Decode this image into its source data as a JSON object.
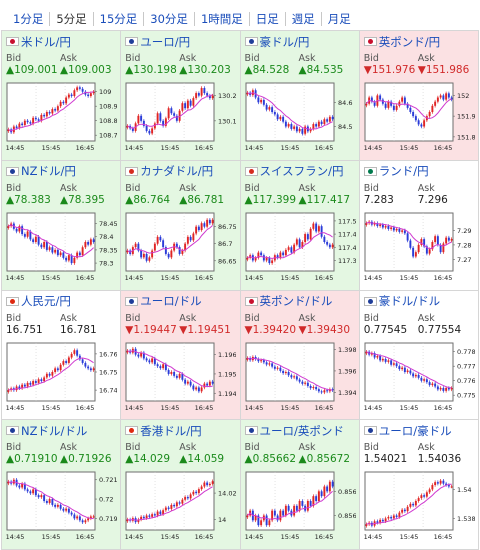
{
  "tabs": [
    "1分足",
    "5分足",
    "15分足",
    "30分足",
    "1時間足",
    "日足",
    "週足",
    "月足"
  ],
  "active_tab": 1,
  "colors": {
    "up": "#1b8a1b",
    "down": "#d12a2a",
    "link": "#1a4dba",
    "ma": "#d03bd0",
    "candle_up": "#e02424",
    "candle_down": "#2a3bd8"
  },
  "bid_label": "Bid",
  "ask_label": "Ask",
  "pairs": [
    {
      "name": "米ドル/円",
      "flag": "us-flag",
      "dir": "up",
      "bid": "▲109.001",
      "ask": "▲109.003",
      "chart_data": {
        "type": "candlestick",
        "x_ticks": [
          "14:45",
          "15:45",
          "16:45"
        ],
        "y_ticks": [
          "109",
          "108.9",
          "108.8",
          "108.7"
        ],
        "ylim": [
          108.66,
          109.06
        ],
        "close": [
          108.74,
          108.72,
          108.76,
          108.75,
          108.78,
          108.77,
          108.8,
          108.79,
          108.78,
          108.82,
          108.81,
          108.8,
          108.84,
          108.83,
          108.86,
          108.85,
          108.88,
          108.87,
          108.9,
          108.93,
          108.92,
          108.96,
          108.98,
          108.97,
          109.01,
          109.03,
          109.02,
          109.0,
          108.98,
          108.97,
          108.99,
          109.0
        ]
      }
    },
    {
      "name": "ユーロ/円",
      "flag": "eu-flag",
      "dir": "up",
      "bid": "▲130.198",
      "ask": "▲130.203",
      "chart_data": {
        "type": "candlestick",
        "x_ticks": [
          "14:45",
          "15:45",
          "16:45"
        ],
        "y_ticks": [
          "130.2",
          "130.1"
        ],
        "ylim": [
          130.02,
          130.25
        ],
        "close": [
          130.08,
          130.07,
          130.06,
          130.09,
          130.12,
          130.1,
          130.08,
          130.06,
          130.05,
          130.07,
          130.09,
          130.13,
          130.1,
          130.08,
          130.11,
          130.15,
          130.13,
          130.12,
          130.1,
          130.14,
          130.17,
          130.15,
          130.18,
          130.16,
          130.19,
          130.21,
          130.2,
          130.23,
          130.21,
          130.2,
          130.19,
          130.2
        ]
      }
    },
    {
      "name": "豪ドル/円",
      "flag": "au-flag",
      "dir": "up",
      "bid": "▲84.528",
      "ask": "▲84.535",
      "chart_data": {
        "type": "candlestick",
        "x_ticks": [
          "14:45",
          "15:45",
          "16:45"
        ],
        "y_ticks": [
          "84.6",
          "84.5"
        ],
        "ylim": [
          84.44,
          84.68
        ],
        "close": [
          84.64,
          84.63,
          84.65,
          84.62,
          84.6,
          84.61,
          84.59,
          84.57,
          84.58,
          84.56,
          84.55,
          84.53,
          84.54,
          84.52,
          84.5,
          84.51,
          84.49,
          84.5,
          84.48,
          84.49,
          84.47,
          84.5,
          84.48,
          84.49,
          84.51,
          84.5,
          84.52,
          84.51,
          84.53,
          84.52,
          84.54,
          84.53
        ]
      }
    },
    {
      "name": "英ポンド/円",
      "flag": "uk-flag",
      "dir": "down",
      "bid": "▼151.976",
      "ask": "▼151.986",
      "chart_data": {
        "type": "candlestick",
        "x_ticks": [
          "14:45",
          "15:45",
          "16:45"
        ],
        "y_ticks": [
          "152",
          "151.9",
          "151.8"
        ],
        "ylim": [
          151.78,
          152.06
        ],
        "close": [
          151.96,
          151.99,
          151.97,
          151.95,
          152.0,
          151.98,
          151.96,
          151.94,
          151.97,
          151.95,
          151.93,
          151.95,
          151.97,
          151.99,
          151.96,
          151.94,
          151.92,
          151.9,
          151.88,
          151.86,
          151.85,
          151.88,
          151.9,
          151.92,
          151.95,
          151.97,
          151.99,
          152.0,
          151.98,
          152.01,
          151.99,
          151.98
        ]
      }
    },
    {
      "name": "NZドル/円",
      "flag": "nz-flag",
      "dir": "up",
      "bid": "▲78.383",
      "ask": "▲78.395",
      "chart_data": {
        "type": "candlestick",
        "x_ticks": [
          "14:45",
          "15:45",
          "16:45"
        ],
        "y_ticks": [
          "78.45",
          "78.4",
          "78.35",
          "78.3"
        ],
        "ylim": [
          78.27,
          78.49
        ],
        "close": [
          78.44,
          78.45,
          78.43,
          78.42,
          78.44,
          78.41,
          78.4,
          78.42,
          78.39,
          78.38,
          78.4,
          78.37,
          78.36,
          78.38,
          78.35,
          78.36,
          78.34,
          78.35,
          78.33,
          78.34,
          78.32,
          78.31,
          78.33,
          78.3,
          78.32,
          78.34,
          78.33,
          78.36,
          78.38,
          78.37,
          78.39,
          78.38
        ]
      }
    },
    {
      "name": "カナダドル/円",
      "flag": "ca-flag",
      "dir": "up",
      "bid": "▲86.764",
      "ask": "▲86.781",
      "chart_data": {
        "type": "candlestick",
        "x_ticks": [
          "14:45",
          "15:45",
          "16:45"
        ],
        "y_ticks": [
          "86.75",
          "86.7",
          "86.65"
        ],
        "ylim": [
          86.62,
          86.79
        ],
        "close": [
          86.68,
          86.67,
          86.69,
          86.7,
          86.68,
          86.66,
          86.67,
          86.65,
          86.66,
          86.68,
          86.7,
          86.72,
          86.71,
          86.69,
          86.67,
          86.66,
          86.68,
          86.7,
          86.69,
          86.67,
          86.68,
          86.7,
          86.72,
          86.71,
          86.73,
          86.75,
          86.74,
          86.76,
          86.75,
          86.77,
          86.76,
          86.77
        ]
      }
    },
    {
      "name": "スイスフラン/円",
      "flag": "ch-flag",
      "dir": "up",
      "bid": "▲117.399",
      "ask": "▲117.417",
      "chart_data": {
        "type": "candlestick",
        "x_ticks": [
          "14:45",
          "15:45",
          "16:45"
        ],
        "y_ticks": [
          "117.5",
          "117.45",
          "117.4",
          "117.35"
        ],
        "ylim": [
          117.31,
          117.53
        ],
        "close": [
          117.36,
          117.37,
          117.35,
          117.36,
          117.38,
          117.37,
          117.35,
          117.36,
          117.34,
          117.35,
          117.37,
          117.36,
          117.38,
          117.37,
          117.39,
          117.4,
          117.38,
          117.41,
          117.43,
          117.4,
          117.42,
          117.45,
          117.43,
          117.47,
          117.49,
          117.46,
          117.48,
          117.44,
          117.42,
          117.41,
          117.4,
          117.41
        ]
      }
    },
    {
      "name": "ランド/円",
      "flag": "za-flag",
      "dir": "flat",
      "bid": "7.283",
      "ask": "7.296",
      "chart_data": {
        "type": "candlestick",
        "x_ticks": [
          "14:45",
          "15:45",
          "16:45"
        ],
        "y_ticks": [
          "7.29",
          "7.28",
          "7.27"
        ],
        "ylim": [
          7.262,
          7.302
        ],
        "close": [
          7.295,
          7.296,
          7.294,
          7.295,
          7.293,
          7.294,
          7.292,
          7.293,
          7.291,
          7.292,
          7.29,
          7.291,
          7.289,
          7.29,
          7.288,
          7.283,
          7.278,
          7.272,
          7.275,
          7.28,
          7.284,
          7.279,
          7.274,
          7.277,
          7.282,
          7.286,
          7.28,
          7.275,
          7.281,
          7.285,
          7.283,
          7.284
        ]
      }
    },
    {
      "name": "人民元/円",
      "flag": "cn-flag",
      "dir": "flat",
      "bid": "16.751",
      "ask": "16.781",
      "chart_data": {
        "type": "candlestick",
        "x_ticks": [
          "14:45",
          "15:45",
          "16:45"
        ],
        "y_ticks": [
          "16.76",
          "16.75",
          "16.74"
        ],
        "ylim": [
          16.734,
          16.766
        ],
        "close": [
          16.74,
          16.741,
          16.74,
          16.742,
          16.741,
          16.743,
          16.742,
          16.744,
          16.743,
          16.745,
          16.744,
          16.746,
          16.745,
          16.747,
          16.749,
          16.748,
          16.75,
          16.752,
          16.751,
          16.754,
          16.756,
          16.755,
          16.758,
          16.76,
          16.762,
          16.759,
          16.757,
          16.755,
          16.753,
          16.752,
          16.751,
          16.752
        ]
      }
    },
    {
      "name": "ユーロ/ドル",
      "flag": "eu-flag",
      "dir": "down",
      "bid": "▼1.19447",
      "ask": "▼1.19451",
      "chart_data": {
        "type": "candlestick",
        "x_ticks": [
          "14:45",
          "15:45",
          "16:45"
        ],
        "y_ticks": [
          "1.196",
          "1.195",
          "1.194"
        ],
        "ylim": [
          1.1936,
          1.1966
        ],
        "close": [
          1.1962,
          1.1961,
          1.1963,
          1.196,
          1.1959,
          1.1961,
          1.1958,
          1.1957,
          1.1956,
          1.1958,
          1.1955,
          1.1954,
          1.1953,
          1.1955,
          1.1952,
          1.195,
          1.1951,
          1.1949,
          1.1948,
          1.195,
          1.1947,
          1.1945,
          1.1946,
          1.1944,
          1.1942,
          1.1943,
          1.1941,
          1.1943,
          1.1945,
          1.1944,
          1.1946,
          1.1945
        ]
      }
    },
    {
      "name": "英ポンド/ドル",
      "flag": "uk-flag",
      "dir": "down",
      "bid": "▼1.39420",
      "ask": "▼1.39430",
      "chart_data": {
        "type": "candlestick",
        "x_ticks": [
          "14:45",
          "15:45",
          "16:45"
        ],
        "y_ticks": [
          "1.398",
          "1.396",
          "1.394"
        ],
        "ylim": [
          1.3932,
          1.3986
        ],
        "close": [
          1.3972,
          1.397,
          1.3973,
          1.3971,
          1.3969,
          1.397,
          1.3968,
          1.3966,
          1.3967,
          1.3964,
          1.3962,
          1.3963,
          1.396,
          1.3958,
          1.3959,
          1.3956,
          1.3954,
          1.3955,
          1.3952,
          1.395,
          1.3948,
          1.3949,
          1.3946,
          1.3944,
          1.3945,
          1.3943,
          1.3941,
          1.394,
          1.3942,
          1.3941,
          1.3943,
          1.3942
        ]
      }
    },
    {
      "name": "豪ドル/ドル",
      "flag": "au-flag",
      "dir": "flat",
      "bid": "0.77545",
      "ask": "0.77554",
      "chart_data": {
        "type": "candlestick",
        "x_ticks": [
          "14:45",
          "15:45",
          "16:45"
        ],
        "y_ticks": [
          "0.778",
          "0.777",
          "0.776",
          "0.775"
        ],
        "ylim": [
          0.7746,
          0.7786
        ],
        "close": [
          0.778,
          0.7778,
          0.7779,
          0.7776,
          0.7777,
          0.7774,
          0.7775,
          0.7773,
          0.7774,
          0.7771,
          0.7772,
          0.777,
          0.7768,
          0.7769,
          0.7766,
          0.7767,
          0.7765,
          0.7763,
          0.7764,
          0.7762,
          0.776,
          0.7761,
          0.7759,
          0.7757,
          0.7758,
          0.7756,
          0.7754,
          0.7755,
          0.7753,
          0.7755,
          0.7754,
          0.7755
        ]
      }
    },
    {
      "name": "NZドル/ドル",
      "flag": "nz-flag",
      "dir": "up",
      "bid": "▲0.71910",
      "ask": "▲0.71926",
      "chart_data": {
        "type": "candlestick",
        "x_ticks": [
          "14:45",
          "15:45",
          "16:45"
        ],
        "y_ticks": [
          "0.721",
          "0.72",
          "0.719"
        ],
        "ylim": [
          0.7184,
          0.7214
        ],
        "close": [
          0.7209,
          0.7208,
          0.721,
          0.7207,
          0.7206,
          0.7208,
          0.7205,
          0.7204,
          0.7203,
          0.7205,
          0.7202,
          0.7201,
          0.7202,
          0.7199,
          0.7198,
          0.72,
          0.7197,
          0.7196,
          0.7197,
          0.7195,
          0.7194,
          0.7195,
          0.7193,
          0.7192,
          0.719,
          0.7191,
          0.7189,
          0.7188,
          0.7189,
          0.719,
          0.7191,
          0.7191
        ]
      }
    },
    {
      "name": "香港ドル/円",
      "flag": "hk-flag",
      "dir": "up",
      "bid": "▲14.029",
      "ask": "▲14.059",
      "chart_data": {
        "type": "candlestick",
        "x_ticks": [
          "14:45",
          "15:45",
          "16:45"
        ],
        "y_ticks": [
          "14.02",
          "14"
        ],
        "ylim": [
          13.992,
          14.036
        ],
        "close": [
          14.0,
          13.999,
          14.001,
          13.998,
          14.0,
          14.002,
          14.001,
          14.003,
          14.002,
          14.004,
          14.003,
          14.006,
          14.004,
          14.007,
          14.009,
          14.008,
          14.011,
          14.01,
          14.013,
          14.012,
          14.015,
          14.017,
          14.016,
          14.019,
          14.021,
          14.02,
          14.023,
          14.025,
          14.028,
          14.026,
          14.027,
          14.029
        ]
      }
    },
    {
      "name": "ユーロ/英ポンド",
      "flag": "eu-flag",
      "dir": "up",
      "bid": "▲0.85662",
      "ask": "▲0.85672",
      "chart_data": {
        "type": "candlestick",
        "x_ticks": [
          "14:45",
          "15:45",
          "16:45"
        ],
        "y_ticks": [
          "0.8565",
          "0.856"
        ],
        "ylim": [
          0.8557,
          0.8569
        ],
        "close": [
          0.856,
          0.8561,
          0.8559,
          0.856,
          0.8558,
          0.8559,
          0.856,
          0.8558,
          0.8559,
          0.8561,
          0.856,
          0.8559,
          0.8561,
          0.856,
          0.8562,
          0.8561,
          0.856,
          0.8562,
          0.8561,
          0.8563,
          0.8562,
          0.8561,
          0.8563,
          0.8562,
          0.8564,
          0.8563,
          0.8565,
          0.8564,
          0.8566,
          0.8565,
          0.8567,
          0.8566
        ]
      }
    },
    {
      "name": "ユーロ/豪ドル",
      "flag": "eu-flag",
      "dir": "flat",
      "bid": "1.54021",
      "ask": "1.54036",
      "chart_data": {
        "type": "candlestick",
        "x_ticks": [
          "14:45",
          "15:45",
          "16:45"
        ],
        "y_ticks": [
          "1.54",
          "1.538"
        ],
        "ylim": [
          1.5372,
          1.5412
        ],
        "close": [
          1.5376,
          1.5377,
          1.5375,
          1.5378,
          1.5377,
          1.5379,
          1.5378,
          1.538,
          1.5381,
          1.538,
          1.5382,
          1.5381,
          1.5384,
          1.5386,
          1.5385,
          1.5388,
          1.539,
          1.5389,
          1.5392,
          1.5394,
          1.5396,
          1.5395,
          1.5398,
          1.54,
          1.5403,
          1.5405,
          1.5404,
          1.5406,
          1.5404,
          1.5403,
          1.5402,
          1.5402
        ]
      }
    }
  ]
}
